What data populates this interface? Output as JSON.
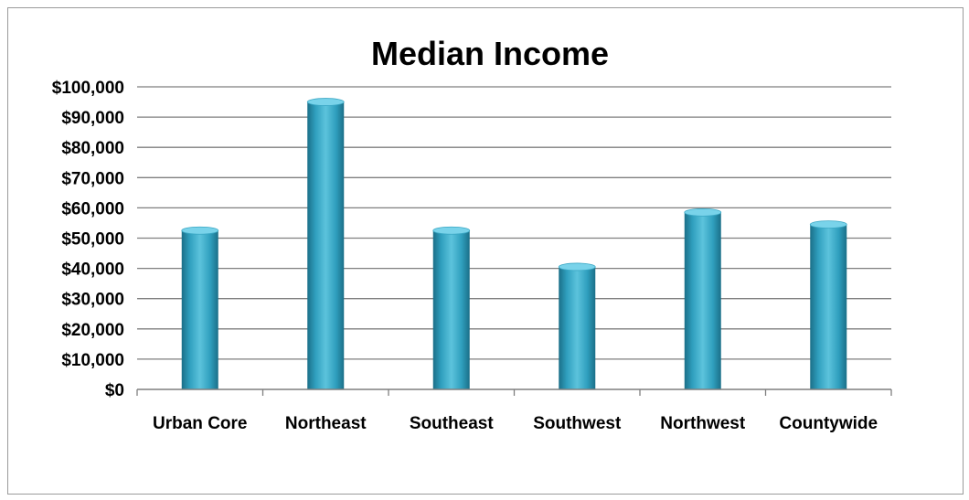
{
  "chart_data": {
    "type": "bar",
    "title": "Median Income",
    "xlabel": "",
    "ylabel": "",
    "categories": [
      "Urban Core",
      "Northeast",
      "Southeast",
      "Southwest",
      "Northwest",
      "Countywide"
    ],
    "values": [
      52500,
      95000,
      52500,
      40500,
      58500,
      54500
    ],
    "ylim": [
      0,
      100000
    ],
    "y_ticks": [
      0,
      10000,
      20000,
      30000,
      40000,
      50000,
      60000,
      70000,
      80000,
      90000,
      100000
    ],
    "y_tick_labels": [
      "$0",
      "$10,000",
      "$20,000",
      "$30,000",
      "$40,000",
      "$50,000",
      "$60,000",
      "$70,000",
      "$80,000",
      "$90,000",
      "$100,000"
    ],
    "grid": true,
    "legend": "none",
    "bar_color": "#2f9fbe"
  }
}
